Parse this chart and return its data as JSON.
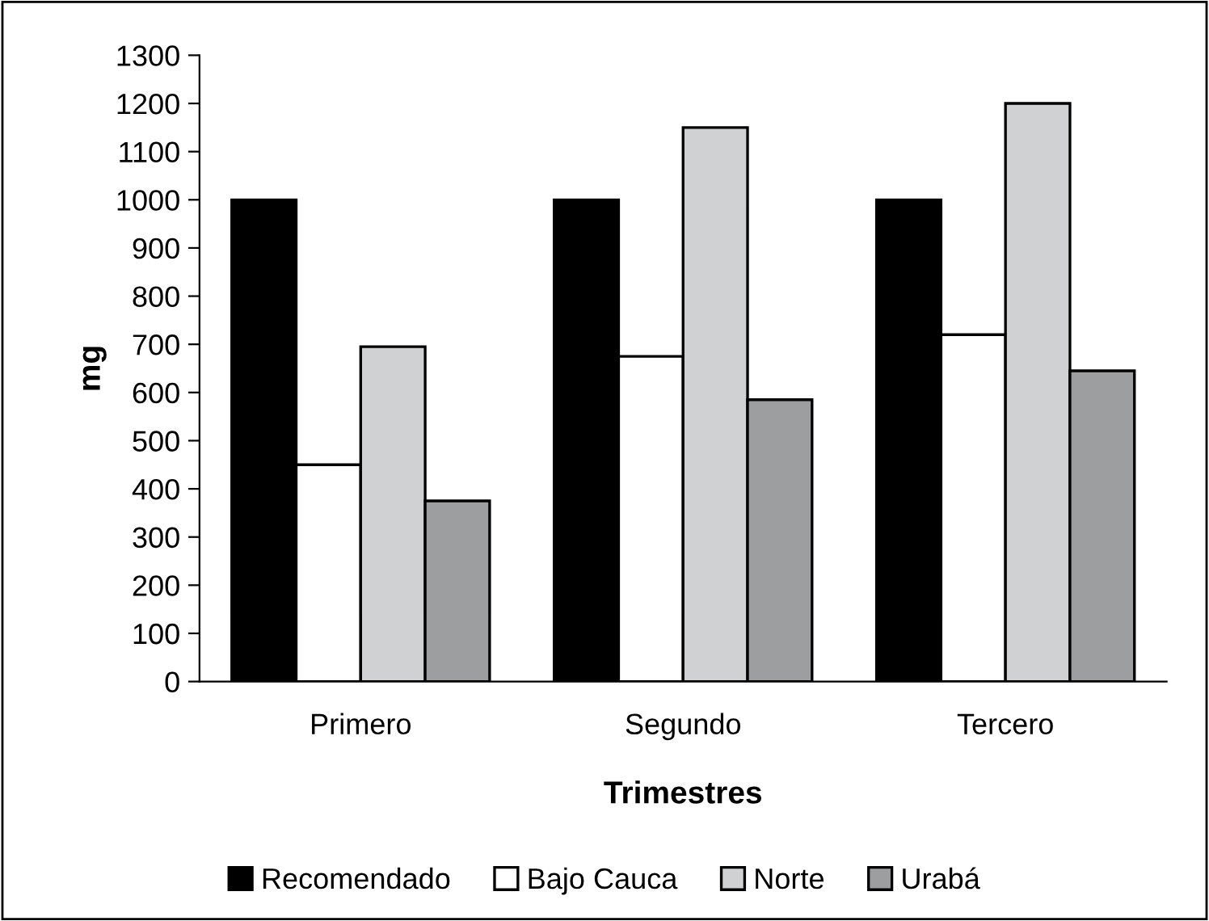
{
  "chart_data": {
    "type": "bar",
    "xlabel": "Trimestres",
    "ylabel": "mg",
    "categories": [
      "Primero",
      "Segundo",
      "Tercero"
    ],
    "series": [
      {
        "name": "Recomendado",
        "color": "#000000",
        "values": [
          1000,
          1000,
          1000
        ]
      },
      {
        "name": "Bajo Cauca",
        "color": "#ffffff",
        "values": [
          450,
          675,
          720
        ]
      },
      {
        "name": "Norte",
        "color": "#d0d1d3",
        "values": [
          695,
          1150,
          1200
        ]
      },
      {
        "name": "Urabá",
        "color": "#9d9e9f",
        "values": [
          375,
          585,
          645
        ]
      }
    ],
    "ylim": [
      0,
      1300
    ],
    "yticks": [
      0,
      100,
      200,
      300,
      400,
      500,
      600,
      700,
      800,
      900,
      1000,
      1100,
      1200,
      1300
    ],
    "grid": false,
    "legend": "bottom"
  }
}
